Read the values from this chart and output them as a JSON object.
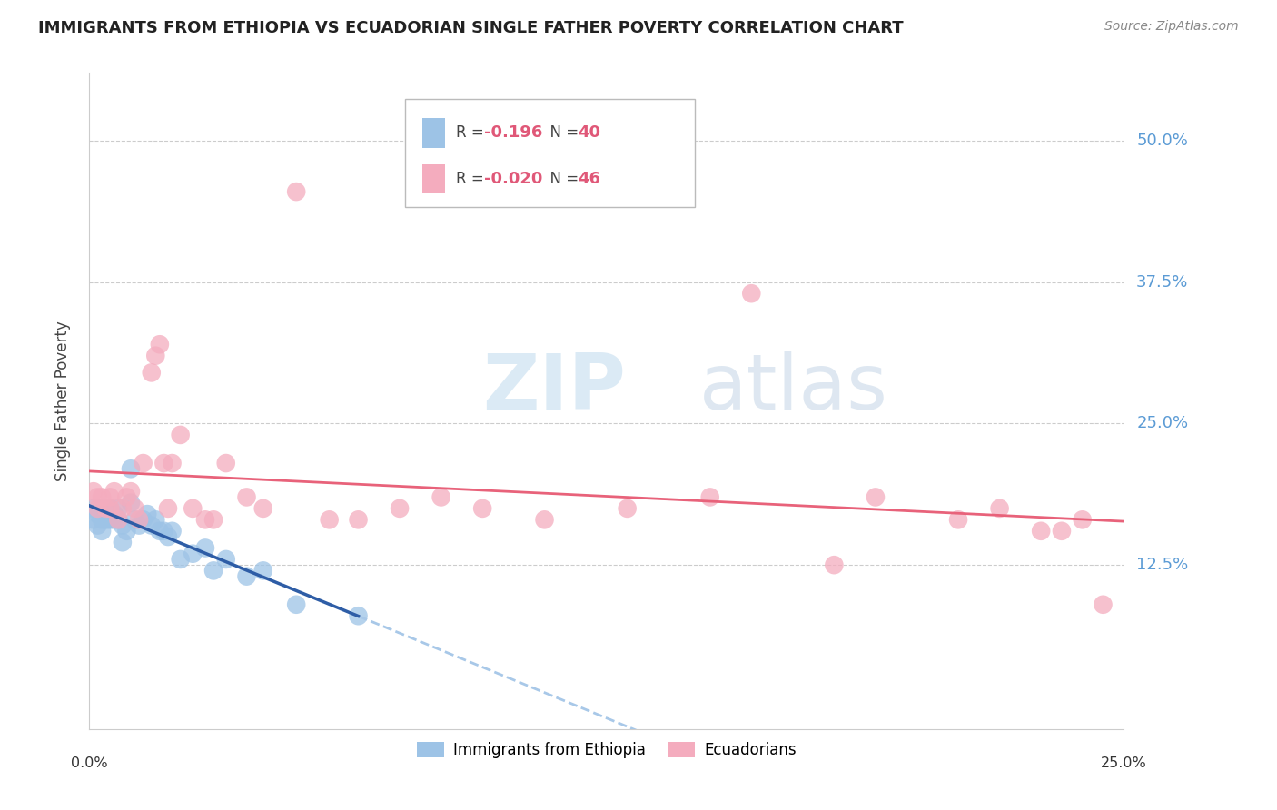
{
  "title": "IMMIGRANTS FROM ETHIOPIA VS ECUADORIAN SINGLE FATHER POVERTY CORRELATION CHART",
  "source": "Source: ZipAtlas.com",
  "ylabel": "Single Father Poverty",
  "ytick_labels": [
    "50.0%",
    "37.5%",
    "25.0%",
    "12.5%"
  ],
  "ytick_values": [
    0.5,
    0.375,
    0.25,
    0.125
  ],
  "legend1_r": "-0.196",
  "legend1_n": "40",
  "legend2_r": "-0.020",
  "legend2_n": "46",
  "blue_scatter_color": "#9DC3E6",
  "pink_scatter_color": "#F4ACBE",
  "blue_line_color": "#2E5DA6",
  "pink_line_color": "#E8627A",
  "blue_dashed_color": "#A8C8E8",
  "tick_label_color": "#5B9BD5",
  "xlim": [
    0.0,
    0.25
  ],
  "ylim": [
    -0.02,
    0.56
  ],
  "ethiopia_x": [
    0.001,
    0.001,
    0.002,
    0.002,
    0.003,
    0.003,
    0.003,
    0.004,
    0.004,
    0.005,
    0.005,
    0.005,
    0.006,
    0.006,
    0.007,
    0.007,
    0.008,
    0.008,
    0.009,
    0.01,
    0.01,
    0.011,
    0.012,
    0.013,
    0.014,
    0.015,
    0.016,
    0.017,
    0.018,
    0.019,
    0.02,
    0.022,
    0.025,
    0.028,
    0.03,
    0.033,
    0.038,
    0.042,
    0.05,
    0.065
  ],
  "ethiopia_y": [
    0.175,
    0.165,
    0.17,
    0.16,
    0.175,
    0.165,
    0.155,
    0.165,
    0.175,
    0.17,
    0.165,
    0.175,
    0.17,
    0.165,
    0.175,
    0.165,
    0.16,
    0.145,
    0.155,
    0.18,
    0.21,
    0.165,
    0.16,
    0.165,
    0.17,
    0.16,
    0.165,
    0.155,
    0.155,
    0.15,
    0.155,
    0.13,
    0.135,
    0.14,
    0.12,
    0.13,
    0.115,
    0.12,
    0.09,
    0.08
  ],
  "ecuador_x": [
    0.001,
    0.002,
    0.002,
    0.003,
    0.004,
    0.005,
    0.005,
    0.006,
    0.007,
    0.008,
    0.009,
    0.01,
    0.011,
    0.012,
    0.013,
    0.015,
    0.016,
    0.017,
    0.018,
    0.019,
    0.02,
    0.022,
    0.025,
    0.028,
    0.03,
    0.033,
    0.038,
    0.042,
    0.05,
    0.058,
    0.065,
    0.075,
    0.085,
    0.095,
    0.11,
    0.13,
    0.15,
    0.16,
    0.18,
    0.19,
    0.21,
    0.22,
    0.23,
    0.235,
    0.24,
    0.245
  ],
  "ecuador_y": [
    0.19,
    0.175,
    0.185,
    0.185,
    0.175,
    0.185,
    0.175,
    0.19,
    0.165,
    0.175,
    0.185,
    0.19,
    0.175,
    0.165,
    0.215,
    0.295,
    0.31,
    0.32,
    0.215,
    0.175,
    0.215,
    0.24,
    0.175,
    0.165,
    0.165,
    0.215,
    0.185,
    0.175,
    0.455,
    0.165,
    0.165,
    0.175,
    0.185,
    0.175,
    0.165,
    0.175,
    0.185,
    0.365,
    0.125,
    0.185,
    0.165,
    0.175,
    0.155,
    0.155,
    0.165,
    0.09
  ]
}
